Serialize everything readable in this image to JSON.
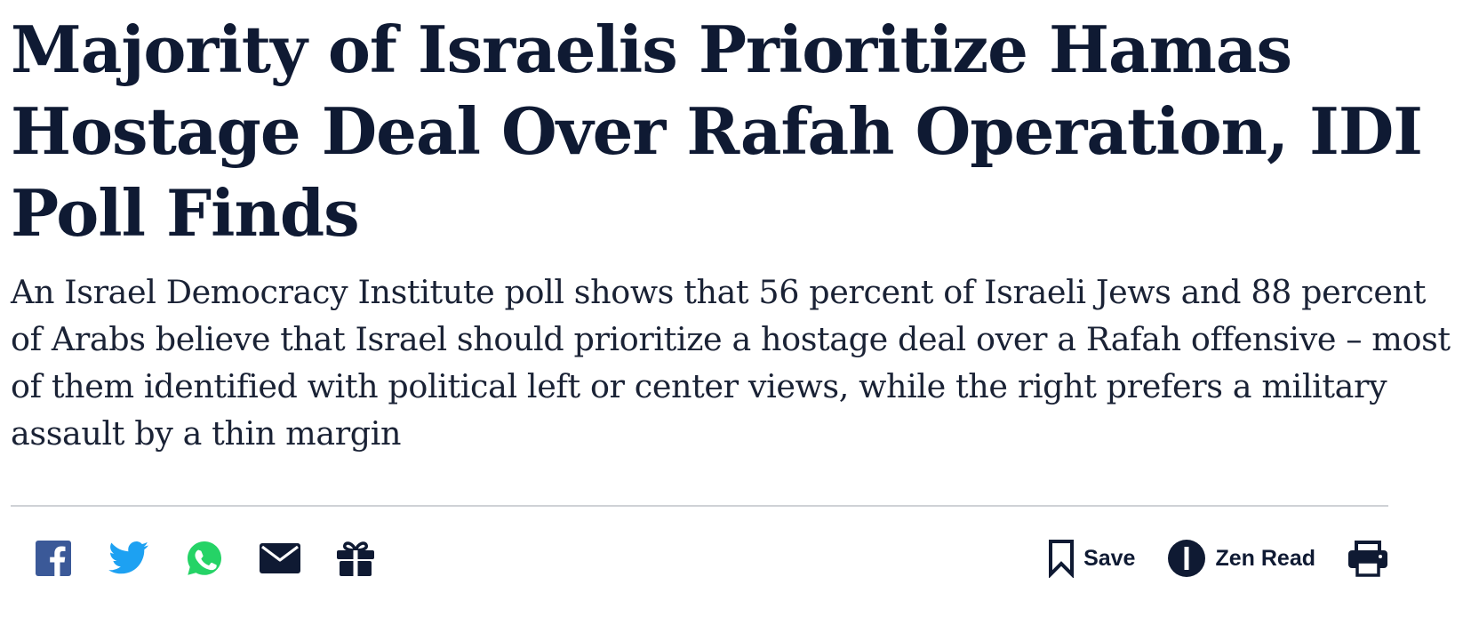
{
  "article": {
    "headline": "Majority of Israelis Prioritize Hamas Hostage Deal Over Rafah Operation, IDI Poll Finds",
    "subheadline": "An Israel Democracy Institute poll shows that 56 percent of Israeli Jews and 88 percent of Arabs believe that Israel should prioritize a hostage deal over a Rafah offensive – most of them identified with political left or center views, while the right prefers a military assault by a thin margin"
  },
  "share": {
    "icons": [
      "facebook-icon",
      "twitter-icon",
      "whatsapp-icon",
      "email-icon",
      "gift-icon"
    ],
    "colors": {
      "facebook": "#3b5998",
      "twitter": "#1da1f2",
      "whatsapp": "#25d366",
      "dark": "#0f1a33"
    }
  },
  "actions": {
    "save_label": "Save",
    "zen_read_label": "Zen Read",
    "icons": [
      "bookmark-icon",
      "zen-read-icon",
      "print-icon"
    ]
  },
  "colors": {
    "text": "#0f1a33",
    "divider": "#cfd2d6",
    "background": "#ffffff"
  }
}
